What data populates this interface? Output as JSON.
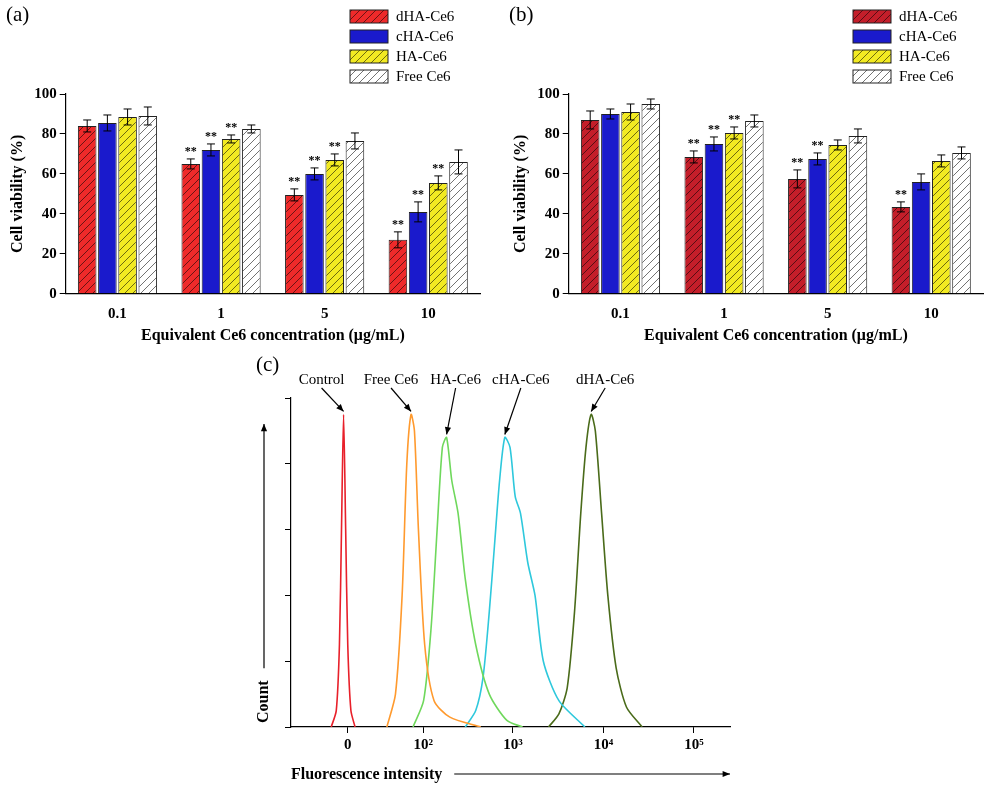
{
  "chart_data": [
    {
      "panel": "(a)",
      "type": "bar",
      "categories": [
        "0.1",
        "1",
        "5",
        "10"
      ],
      "x_label": "Equivalent Ce6 concentration (μg/mL)",
      "y_label": "Cell viability (%)",
      "ylim": [
        0,
        100
      ],
      "yticks": [
        0,
        20,
        40,
        60,
        80,
        100
      ],
      "grid": false,
      "legend": "upper right",
      "series": [
        {
          "name": "dHA-Ce6",
          "color": "#ee2a2a",
          "values": [
            84,
            65,
            49.5,
            27
          ],
          "errors": [
            3,
            2.5,
            3,
            4
          ],
          "significance": [
            null,
            "**",
            "**",
            "**"
          ]
        },
        {
          "name": "cHA-Ce6",
          "color": "#1a1acc",
          "values": [
            85.5,
            72,
            60,
            41
          ],
          "errors": [
            4,
            3,
            3,
            5
          ],
          "significance": [
            null,
            "**",
            "**",
            "**"
          ]
        },
        {
          "name": "HA-Ce6",
          "color": "#f2ea22",
          "values": [
            88.5,
            77.5,
            67,
            55.5
          ],
          "errors": [
            4,
            2,
            3,
            3.5
          ],
          "significance": [
            null,
            "**",
            "**",
            "**"
          ]
        },
        {
          "name": "Free Ce6",
          "color": "#ffffff",
          "values": [
            89,
            82.5,
            76.5,
            66
          ],
          "errors": [
            4.5,
            2,
            4,
            6
          ],
          "significance": [
            null,
            null,
            null,
            null
          ]
        }
      ]
    },
    {
      "panel": "(b)",
      "type": "bar",
      "categories": [
        "0.1",
        "1",
        "5",
        "10"
      ],
      "x_label": "Equivalent Ce6 concentration (μg/mL)",
      "y_label": "Cell viability (%)",
      "ylim": [
        0,
        100
      ],
      "yticks": [
        0,
        20,
        40,
        60,
        80,
        100
      ],
      "grid": false,
      "legend": "upper right",
      "series": [
        {
          "name": "dHA-Ce6",
          "color": "#c41e2a",
          "values": [
            87,
            68.5,
            57.5,
            43.5
          ],
          "errors": [
            4.5,
            3,
            4.5,
            2.5
          ],
          "significance": [
            null,
            "**",
            "**",
            "**"
          ]
        },
        {
          "name": "cHA-Ce6",
          "color": "#1a1acc",
          "values": [
            90,
            75,
            67.5,
            56
          ],
          "errors": [
            2.5,
            3.5,
            3,
            4
          ],
          "significance": [
            null,
            "**",
            "**",
            null
          ]
        },
        {
          "name": "HA-Ce6",
          "color": "#f2ea22",
          "values": [
            91,
            80.5,
            74.5,
            66.5
          ],
          "errors": [
            4,
            3,
            2.5,
            3
          ],
          "significance": [
            null,
            "**",
            null,
            null
          ]
        },
        {
          "name": "Free Ce6",
          "color": "#ffffff",
          "values": [
            95,
            86.5,
            79,
            70.5
          ],
          "errors": [
            2.5,
            3,
            3.5,
            3
          ],
          "significance": [
            null,
            null,
            null,
            null
          ]
        }
      ]
    },
    {
      "panel": "(c)",
      "type": "line",
      "x_label": "Fluorescence intensity",
      "y_label": "Count",
      "xlim": [
        -60,
        250000
      ],
      "xticks": [
        0,
        {
          "value": 100,
          "label": "10²"
        },
        {
          "value": 1000,
          "label": "10³"
        },
        {
          "value": 10000,
          "label": "10⁴"
        },
        {
          "value": 100000,
          "label": "10⁵"
        }
      ],
      "ylim": [
        0,
        100
      ],
      "yticks": [
        0,
        20,
        40,
        60,
        80,
        100
      ],
      "tick_labels": "x",
      "grid": false,
      "series": [
        {
          "name": "Control",
          "color": "#e8202a",
          "x": [
            -13,
            -8.9,
            -6.4,
            -4.8,
            -3.2,
            -1.6,
            0,
            2.4,
            5.6
          ],
          "values": [
            0,
            5,
            25,
            60,
            95,
            60,
            25,
            5,
            0
          ]
        },
        {
          "name": "Free Ce6",
          "color": "#ff9a2e",
          "x": [
            35,
            46,
            56,
            64,
            72,
            79,
            88,
            104,
            133,
            200,
            441
          ],
          "values": [
            0,
            10,
            40,
            80,
            95,
            90,
            60,
            25,
            8,
            3,
            0
          ]
        },
        {
          "name": "HA-Ce6",
          "color": "#6fd85c",
          "x": [
            76,
            101,
            123,
            144,
            165,
            184,
            210,
            247,
            297,
            388,
            548,
            858,
            1278
          ],
          "values": [
            0,
            8,
            30,
            60,
            85,
            88,
            75,
            65,
            45,
            25,
            10,
            2,
            0
          ]
        },
        {
          "name": "cHA-Ce6",
          "color": "#2ec8dc",
          "x": [
            297,
            388,
            467,
            548,
            625,
            713,
            814,
            929,
            1061,
            1212,
            1459,
            1755,
            2169,
            3223,
            6241
          ],
          "values": [
            0,
            5,
            15,
            35,
            55,
            75,
            88,
            85,
            70,
            65,
            50,
            40,
            20,
            8,
            0
          ]
        },
        {
          "name": "dHA-Ce6",
          "color": "#4a6b1a",
          "x": [
            2475,
            3223,
            3984,
            4794,
            5621,
            6415,
            7321,
            8138,
            9540,
            11184,
            13812,
            18000,
            26770
          ],
          "values": [
            0,
            4,
            12,
            35,
            65,
            85,
            95,
            90,
            65,
            40,
            18,
            6,
            0
          ]
        }
      ]
    }
  ]
}
